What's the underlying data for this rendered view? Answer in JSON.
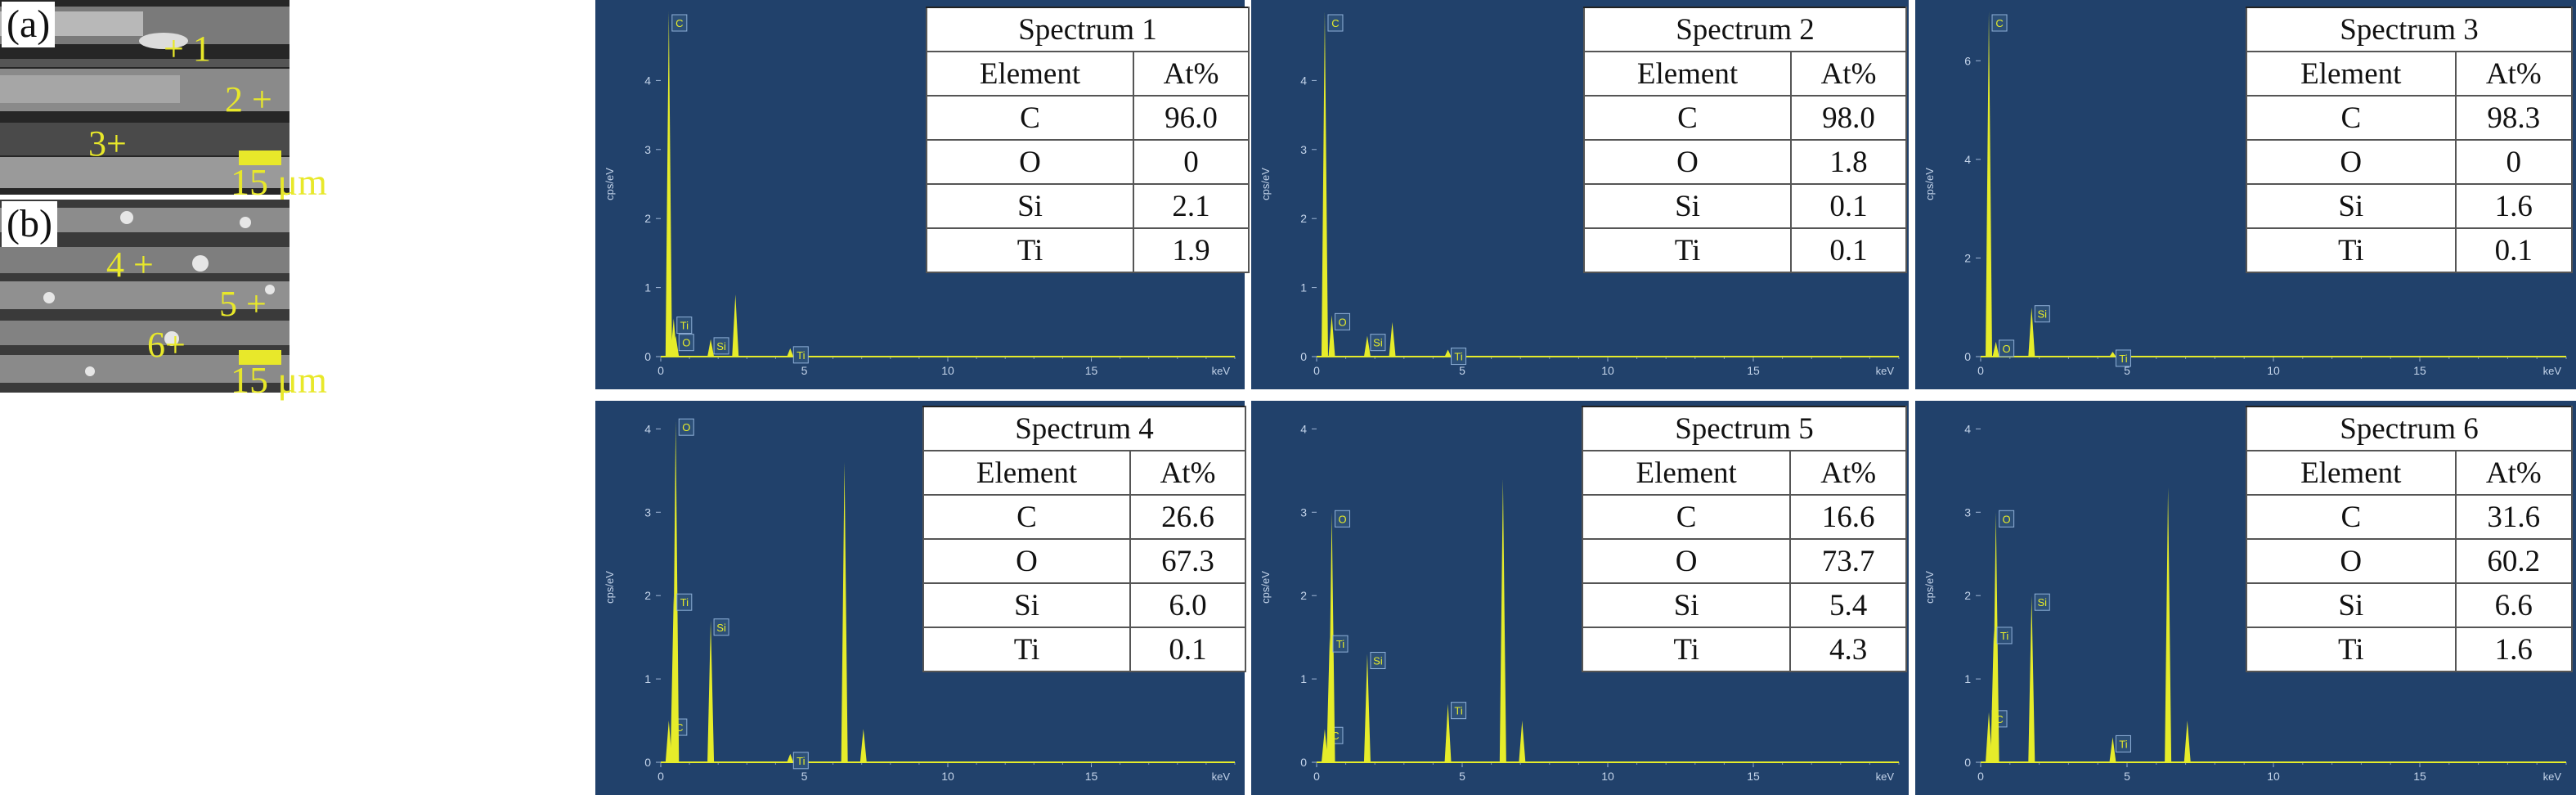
{
  "rows": [
    {
      "label": "(a)",
      "scale_text": "15 μm",
      "spots": [
        "+ 1",
        "2 +",
        "3+"
      ],
      "spectra": [
        {
          "title": "Spectrum 1",
          "header": [
            "Element",
            "At%"
          ],
          "rows": [
            [
              "C",
              "96.0"
            ],
            [
              "O",
              "0"
            ],
            [
              "Si",
              "2.1"
            ],
            [
              "Ti",
              "1.9"
            ]
          ],
          "ymax": 5,
          "yticks": [
            "0",
            "1",
            "2",
            "3",
            "4"
          ]
        },
        {
          "title": "Spectrum 2",
          "header": [
            "Element",
            "At%"
          ],
          "rows": [
            [
              "C",
              "98.0"
            ],
            [
              "O",
              "1.8"
            ],
            [
              "Si",
              "0.1"
            ],
            [
              "Ti",
              "0.1"
            ]
          ],
          "ymax": 5,
          "yticks": [
            "0",
            "1",
            "2",
            "3",
            "4"
          ]
        },
        {
          "title": "Spectrum 3",
          "header": [
            "Element",
            "At%"
          ],
          "rows": [
            [
              "C",
              "98.3"
            ],
            [
              "O",
              "0"
            ],
            [
              "Si",
              "1.6"
            ],
            [
              "Ti",
              "0.1"
            ]
          ],
          "ymax": 7,
          "yticks": [
            "0",
            "2",
            "4",
            "6"
          ]
        }
      ]
    },
    {
      "label": "(b)",
      "scale_text": "15 μm",
      "spots": [
        "4 +",
        "5 +",
        "6+"
      ],
      "spectra": [
        {
          "title": "Spectrum 4",
          "header": [
            "Element",
            "At%"
          ],
          "rows": [
            [
              "C",
              "26.6"
            ],
            [
              "O",
              "67.3"
            ],
            [
              "Si",
              "6.0"
            ],
            [
              "Ti",
              "0.1"
            ]
          ],
          "ymax": 4.2,
          "yticks": [
            "0",
            "1",
            "2",
            "3",
            "4"
          ]
        },
        {
          "title": "Spectrum 5",
          "header": [
            "Element",
            "At%"
          ],
          "rows": [
            [
              "C",
              "16.6"
            ],
            [
              "O",
              "73.7"
            ],
            [
              "Si",
              "5.4"
            ],
            [
              "Ti",
              "4.3"
            ]
          ],
          "ymax": 4.2,
          "yticks": [
            "0",
            "1",
            "2",
            "3",
            "4"
          ]
        },
        {
          "title": "Spectrum 6",
          "header": [
            "Element",
            "At%"
          ],
          "rows": [
            [
              "C",
              "31.6"
            ],
            [
              "O",
              "60.2"
            ],
            [
              "Si",
              "6.6"
            ],
            [
              "Ti",
              "1.6"
            ]
          ],
          "ymax": 4.2,
          "yticks": [
            "0",
            "1",
            "2",
            "3",
            "4"
          ]
        }
      ]
    }
  ],
  "axis": {
    "ylabel": "cps/eV",
    "xunit": "keV",
    "xticks": [
      "0",
      "5",
      "10",
      "15"
    ],
    "xmax": 20
  },
  "colors": {
    "spectrum_bg": "#21416b",
    "trace": "#e6ec2a",
    "sem_accent": "#e8e82a"
  },
  "chart_data": [
    {
      "type": "line",
      "title": "Spectrum 1",
      "xlabel": "keV",
      "ylabel": "cps/eV",
      "xlim": [
        0,
        20
      ],
      "ylim": [
        0,
        5
      ],
      "peaks": [
        {
          "element": "C",
          "x": 0.28,
          "y": 5.0
        },
        {
          "element": "Ti",
          "x": 0.45,
          "y": 0.55
        },
        {
          "element": "O",
          "x": 0.52,
          "y": 0.3
        },
        {
          "element": "Si",
          "x": 1.74,
          "y": 0.25
        },
        {
          "element": "",
          "x": 2.6,
          "y": 0.9
        },
        {
          "element": "Ti",
          "x": 4.51,
          "y": 0.12
        }
      ]
    },
    {
      "type": "line",
      "title": "Spectrum 2",
      "xlabel": "keV",
      "ylabel": "cps/eV",
      "xlim": [
        0,
        20
      ],
      "ylim": [
        0,
        5
      ],
      "peaks": [
        {
          "element": "C",
          "x": 0.28,
          "y": 5.0
        },
        {
          "element": "O",
          "x": 0.52,
          "y": 0.6
        },
        {
          "element": "Si",
          "x": 1.74,
          "y": 0.3
        },
        {
          "element": "",
          "x": 2.6,
          "y": 0.5
        },
        {
          "element": "Ti",
          "x": 4.51,
          "y": 0.1
        }
      ]
    },
    {
      "type": "line",
      "title": "Spectrum 3",
      "xlabel": "keV",
      "ylabel": "cps/eV",
      "xlim": [
        0,
        20
      ],
      "ylim": [
        0,
        7
      ],
      "peaks": [
        {
          "element": "C",
          "x": 0.28,
          "y": 7.0
        },
        {
          "element": "O",
          "x": 0.52,
          "y": 0.3
        },
        {
          "element": "Si",
          "x": 1.74,
          "y": 1.0
        },
        {
          "element": "Ti",
          "x": 4.51,
          "y": 0.1
        }
      ]
    },
    {
      "type": "line",
      "title": "Spectrum 4",
      "xlabel": "keV",
      "ylabel": "cps/eV",
      "xlim": [
        0,
        20
      ],
      "ylim": [
        0,
        4.2
      ],
      "peaks": [
        {
          "element": "C",
          "x": 0.28,
          "y": 0.5
        },
        {
          "element": "O",
          "x": 0.52,
          "y": 4.1
        },
        {
          "element": "Ti",
          "x": 0.45,
          "y": 2.0
        },
        {
          "element": "Si",
          "x": 1.74,
          "y": 1.7
        },
        {
          "element": "Ti",
          "x": 4.51,
          "y": 0.1
        },
        {
          "element": "",
          "x": 6.4,
          "y": 3.6
        },
        {
          "element": "",
          "x": 7.06,
          "y": 0.4
        }
      ]
    },
    {
      "type": "line",
      "title": "Spectrum 5",
      "xlabel": "keV",
      "ylabel": "cps/eV",
      "xlim": [
        0,
        20
      ],
      "ylim": [
        0,
        4.2
      ],
      "peaks": [
        {
          "element": "C",
          "x": 0.28,
          "y": 0.4
        },
        {
          "element": "O",
          "x": 0.52,
          "y": 3.0
        },
        {
          "element": "Ti",
          "x": 0.45,
          "y": 1.5
        },
        {
          "element": "Si",
          "x": 1.74,
          "y": 1.3
        },
        {
          "element": "Ti",
          "x": 4.51,
          "y": 0.7
        },
        {
          "element": "",
          "x": 6.4,
          "y": 3.4
        },
        {
          "element": "",
          "x": 7.06,
          "y": 0.5
        }
      ]
    },
    {
      "type": "line",
      "title": "Spectrum 6",
      "xlabel": "keV",
      "ylabel": "cps/eV",
      "xlim": [
        0,
        20
      ],
      "ylim": [
        0,
        4.2
      ],
      "peaks": [
        {
          "element": "C",
          "x": 0.28,
          "y": 0.6
        },
        {
          "element": "O",
          "x": 0.52,
          "y": 3.0
        },
        {
          "element": "Ti",
          "x": 0.45,
          "y": 1.6
        },
        {
          "element": "Si",
          "x": 1.74,
          "y": 2.0
        },
        {
          "element": "Ti",
          "x": 4.51,
          "y": 0.3
        },
        {
          "element": "",
          "x": 6.4,
          "y": 3.3
        },
        {
          "element": "",
          "x": 7.06,
          "y": 0.5
        }
      ]
    }
  ]
}
